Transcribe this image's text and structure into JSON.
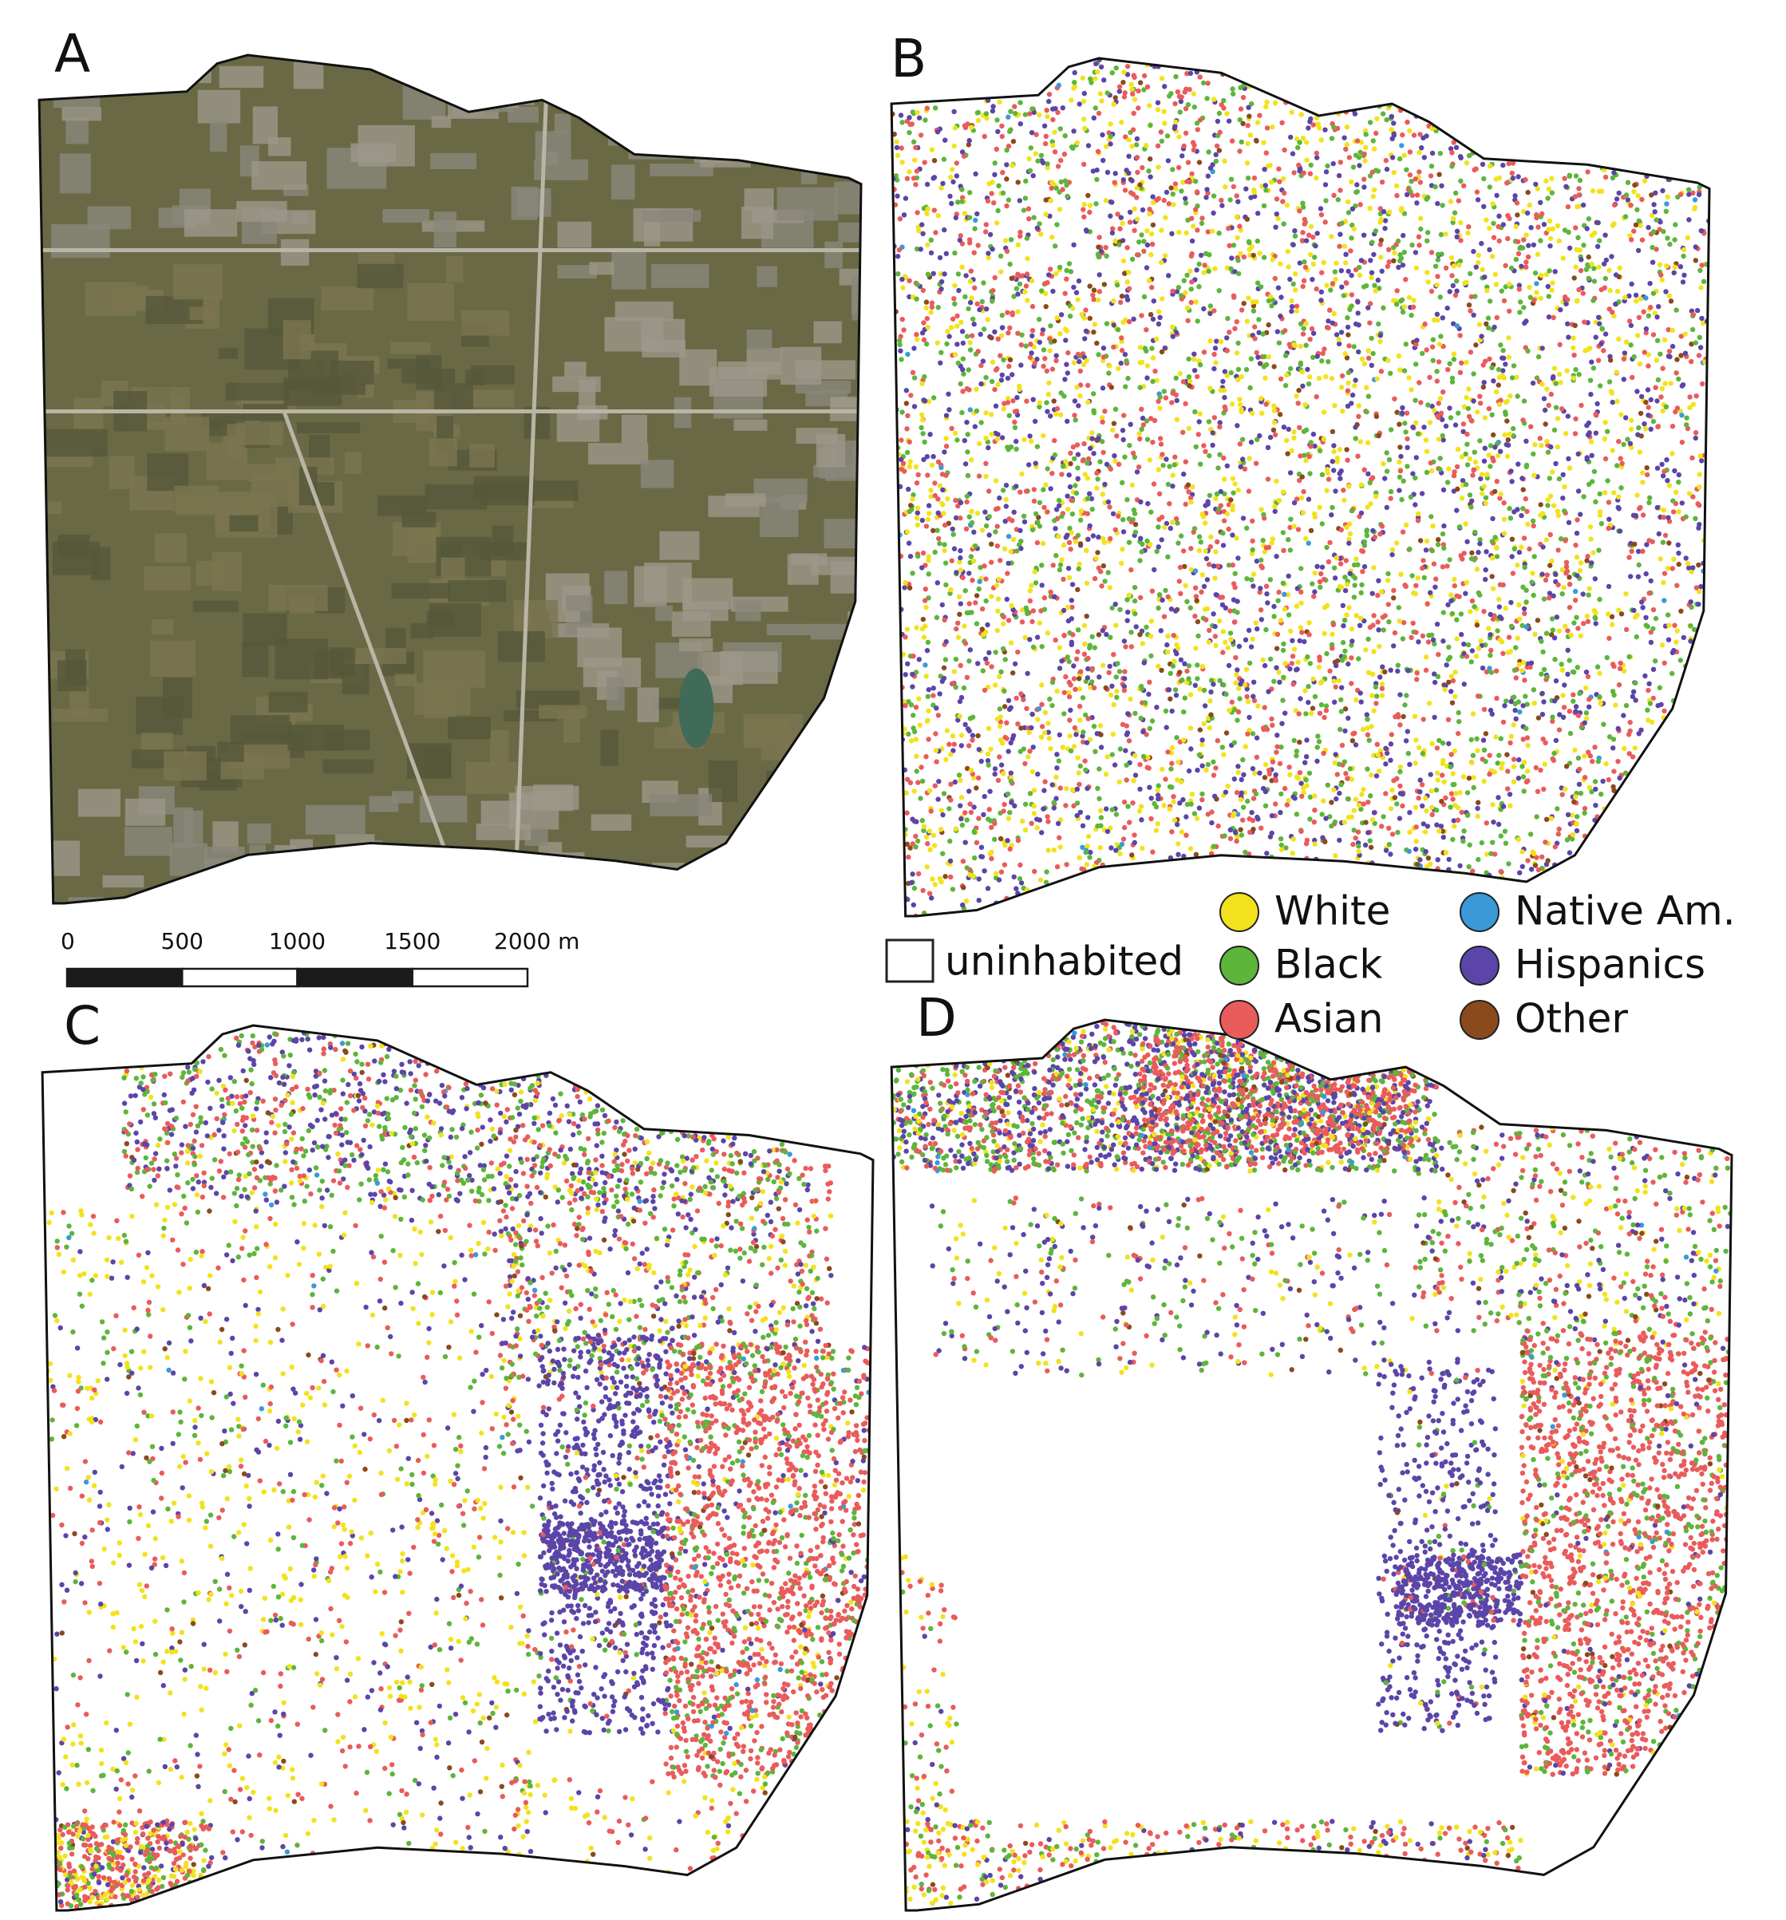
{
  "panels": [
    {
      "label": "A"
    },
    {
      "label": "B"
    },
    {
      "label": "C"
    },
    {
      "label": "D"
    }
  ],
  "scale_bar": {
    "ticks": [
      0,
      500,
      1000,
      1500,
      {
        "value": 2000,
        "label": "2000 m"
      }
    ]
  },
  "legend": {
    "empty_label": "uninhabited",
    "groups": [
      {
        "name": "White",
        "color": "#f2e21c"
      },
      {
        "name": "Black",
        "color": "#5db53b"
      },
      {
        "name": "Asian",
        "color": "#ea5b5b"
      },
      {
        "name": "Native Am.",
        "color": "#3a9ad8"
      },
      {
        "name": "Hispanics",
        "color": "#5b45a8"
      },
      {
        "name": "Other",
        "color": "#8b4a1c"
      }
    ]
  }
}
